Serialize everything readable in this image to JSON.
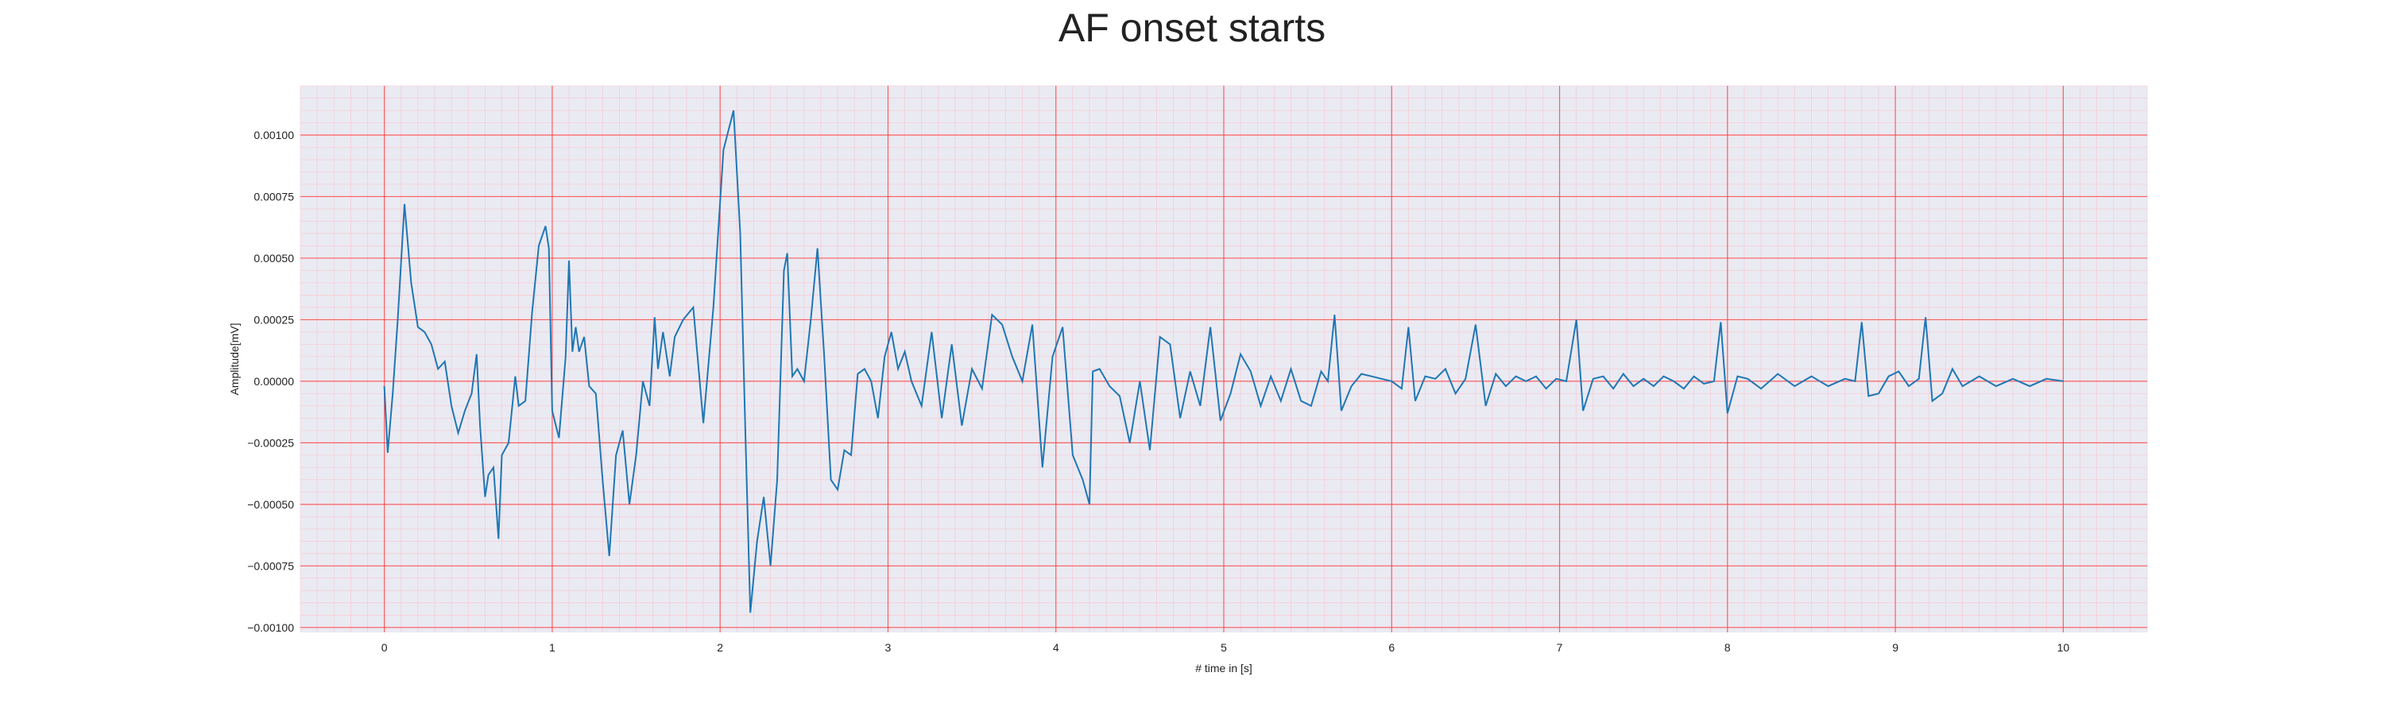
{
  "chart_data": {
    "type": "line",
    "title": "AF onset starts",
    "xlabel": "# time in [s]",
    "ylabel": "Amplitude[mV]",
    "xlim": [
      -0.5,
      10.5
    ],
    "ylim": [
      -0.00102,
      0.0012
    ],
    "x_ticks": [
      0,
      1,
      2,
      3,
      4,
      5,
      6,
      7,
      8,
      9,
      10
    ],
    "x_tick_labels": [
      "0",
      "1",
      "2",
      "3",
      "4",
      "5",
      "6",
      "7",
      "8",
      "9",
      "10"
    ],
    "y_ticks": [
      -0.001,
      -0.00075,
      -0.0005,
      -0.00025,
      0.0,
      0.00025,
      0.0005,
      0.00075,
      0.001
    ],
    "y_tick_labels": [
      "−0.00100",
      "−0.00075",
      "−0.00050",
      "−0.00025",
      "0.00000",
      "0.00025",
      "0.00050",
      "0.00075",
      "0.00100"
    ],
    "grid": "major and minor (ECG-paper style)",
    "colors": {
      "background": "#eaeaf2",
      "major_grid": "#ff4040",
      "minor_grid": "#ffb6c1",
      "line": "#1f77b4"
    },
    "series": [
      {
        "x": [
          0.0,
          0.02,
          0.05,
          0.08,
          0.12,
          0.16,
          0.2,
          0.24,
          0.28,
          0.32,
          0.36,
          0.4,
          0.44,
          0.48,
          0.52,
          0.55,
          0.57,
          0.6,
          0.62,
          0.65,
          0.68,
          0.7,
          0.74,
          0.78,
          0.8,
          0.84,
          0.88,
          0.92,
          0.96,
          0.98,
          1.0,
          1.04,
          1.08,
          1.1,
          1.12,
          1.14,
          1.16,
          1.19,
          1.22,
          1.26,
          1.3,
          1.34,
          1.38,
          1.42,
          1.46,
          1.5,
          1.54,
          1.58,
          1.61,
          1.63,
          1.66,
          1.7,
          1.73,
          1.78,
          1.84,
          1.9,
          1.96,
          2.02,
          2.08,
          2.12,
          2.15,
          2.18,
          2.22,
          2.26,
          2.3,
          2.34,
          2.38,
          2.4,
          2.43,
          2.46,
          2.5,
          2.54,
          2.58,
          2.62,
          2.66,
          2.7,
          2.74,
          2.78,
          2.82,
          2.86,
          2.9,
          2.94,
          2.98,
          3.02,
          3.06,
          3.1,
          3.14,
          3.2,
          3.26,
          3.32,
          3.38,
          3.44,
          3.5,
          3.56,
          3.62,
          3.68,
          3.74,
          3.8,
          3.86,
          3.92,
          3.98,
          4.04,
          4.1,
          4.16,
          4.2,
          4.22,
          4.26,
          4.32,
          4.38,
          4.44,
          4.5,
          4.56,
          4.62,
          4.68,
          4.74,
          4.8,
          4.86,
          4.92,
          4.98,
          5.04,
          5.1,
          5.16,
          5.22,
          5.28,
          5.34,
          5.4,
          5.46,
          5.52,
          5.58,
          5.62,
          5.66,
          5.7,
          5.76,
          5.82,
          5.88,
          5.94,
          6.0,
          6.06,
          6.1,
          6.14,
          6.2,
          6.26,
          6.32,
          6.38,
          6.44,
          6.5,
          6.56,
          6.62,
          6.68,
          6.74,
          6.8,
          6.86,
          6.92,
          6.98,
          7.04,
          7.1,
          7.14,
          7.2,
          7.26,
          7.32,
          7.38,
          7.44,
          7.5,
          7.56,
          7.62,
          7.68,
          7.74,
          7.8,
          7.86,
          7.92,
          7.96,
          8.0,
          8.06,
          8.12,
          8.2,
          8.3,
          8.4,
          8.5,
          8.6,
          8.7,
          8.76,
          8.8,
          8.84,
          8.9,
          8.96,
          9.02,
          9.08,
          9.14,
          9.18,
          9.22,
          9.28,
          9.34,
          9.4,
          9.5,
          9.6,
          9.7,
          9.8,
          9.9,
          10.0
        ],
        "y": [
          -2e-05,
          -0.00029,
          -5e-05,
          0.00025,
          0.00072,
          0.0004,
          0.00022,
          0.0002,
          0.00015,
          5e-05,
          8e-05,
          -0.0001,
          -0.00021,
          -0.00012,
          -5e-05,
          0.00011,
          -0.00018,
          -0.00047,
          -0.00038,
          -0.00035,
          -0.00064,
          -0.0003,
          -0.00025,
          2e-05,
          -0.0001,
          -8e-05,
          0.00028,
          0.00055,
          0.00063,
          0.00054,
          -0.00012,
          -0.00023,
          0.0001,
          0.00049,
          0.00012,
          0.00022,
          0.00012,
          0.00018,
          -2e-05,
          -5e-05,
          -0.0004,
          -0.00071,
          -0.0003,
          -0.0002,
          -0.0005,
          -0.0003,
          0.0,
          -0.0001,
          0.00026,
          5e-05,
          0.0002,
          2e-05,
          0.00018,
          0.00025,
          0.0003,
          -0.00017,
          0.0003,
          0.00094,
          0.0011,
          0.0006,
          -0.0002,
          -0.00094,
          -0.00065,
          -0.00047,
          -0.00075,
          -0.0004,
          0.00045,
          0.00052,
          2e-05,
          5e-05,
          0.0,
          0.00025,
          0.00054,
          0.0001,
          -0.0004,
          -0.00044,
          -0.00028,
          -0.0003,
          3e-05,
          5e-05,
          0.0,
          -0.00015,
          0.0001,
          0.0002,
          5e-05,
          0.00012,
          0.0,
          -0.0001,
          0.0002,
          -0.00015,
          0.00015,
          -0.00018,
          5e-05,
          -3e-05,
          0.00027,
          0.00023,
          0.0001,
          0.0,
          0.00023,
          -0.00035,
          0.0001,
          0.00022,
          -0.0003,
          -0.0004,
          -0.0005,
          4e-05,
          5e-05,
          -2e-05,
          -6e-05,
          -0.00025,
          0.0,
          -0.00028,
          0.00018,
          0.00015,
          -0.00015,
          4e-05,
          -0.0001,
          0.00022,
          -0.00016,
          -5e-05,
          0.00011,
          4e-05,
          -0.0001,
          2e-05,
          -8e-05,
          5e-05,
          -8e-05,
          -0.0001,
          4e-05,
          0.0,
          0.00027,
          -0.00012,
          -2e-05,
          3e-05,
          2e-05,
          1e-05,
          0.0,
          -3e-05,
          0.00022,
          -8e-05,
          2e-05,
          1e-05,
          5e-05,
          -5e-05,
          1e-05,
          0.00023,
          -0.0001,
          3e-05,
          -2e-05,
          2e-05,
          0.0,
          2e-05,
          -3e-05,
          1e-05,
          0.0,
          0.00025,
          -0.00012,
          1e-05,
          2e-05,
          -3e-05,
          3e-05,
          -2e-05,
          1e-05,
          -2e-05,
          2e-05,
          0.0,
          -3e-05,
          2e-05,
          -1e-05,
          0.0,
          0.00024,
          -0.00013,
          2e-05,
          1e-05,
          -3e-05,
          3e-05,
          -2e-05,
          2e-05,
          -2e-05,
          1e-05,
          0.0,
          0.00024,
          -6e-05,
          -5e-05,
          2e-05,
          4e-05,
          -2e-05,
          1e-05,
          0.00026,
          -8e-05,
          -5e-05,
          5e-05,
          -2e-05,
          2e-05,
          -2e-05,
          1e-05,
          -2e-05,
          1e-05,
          0.0
        ]
      }
    ]
  }
}
